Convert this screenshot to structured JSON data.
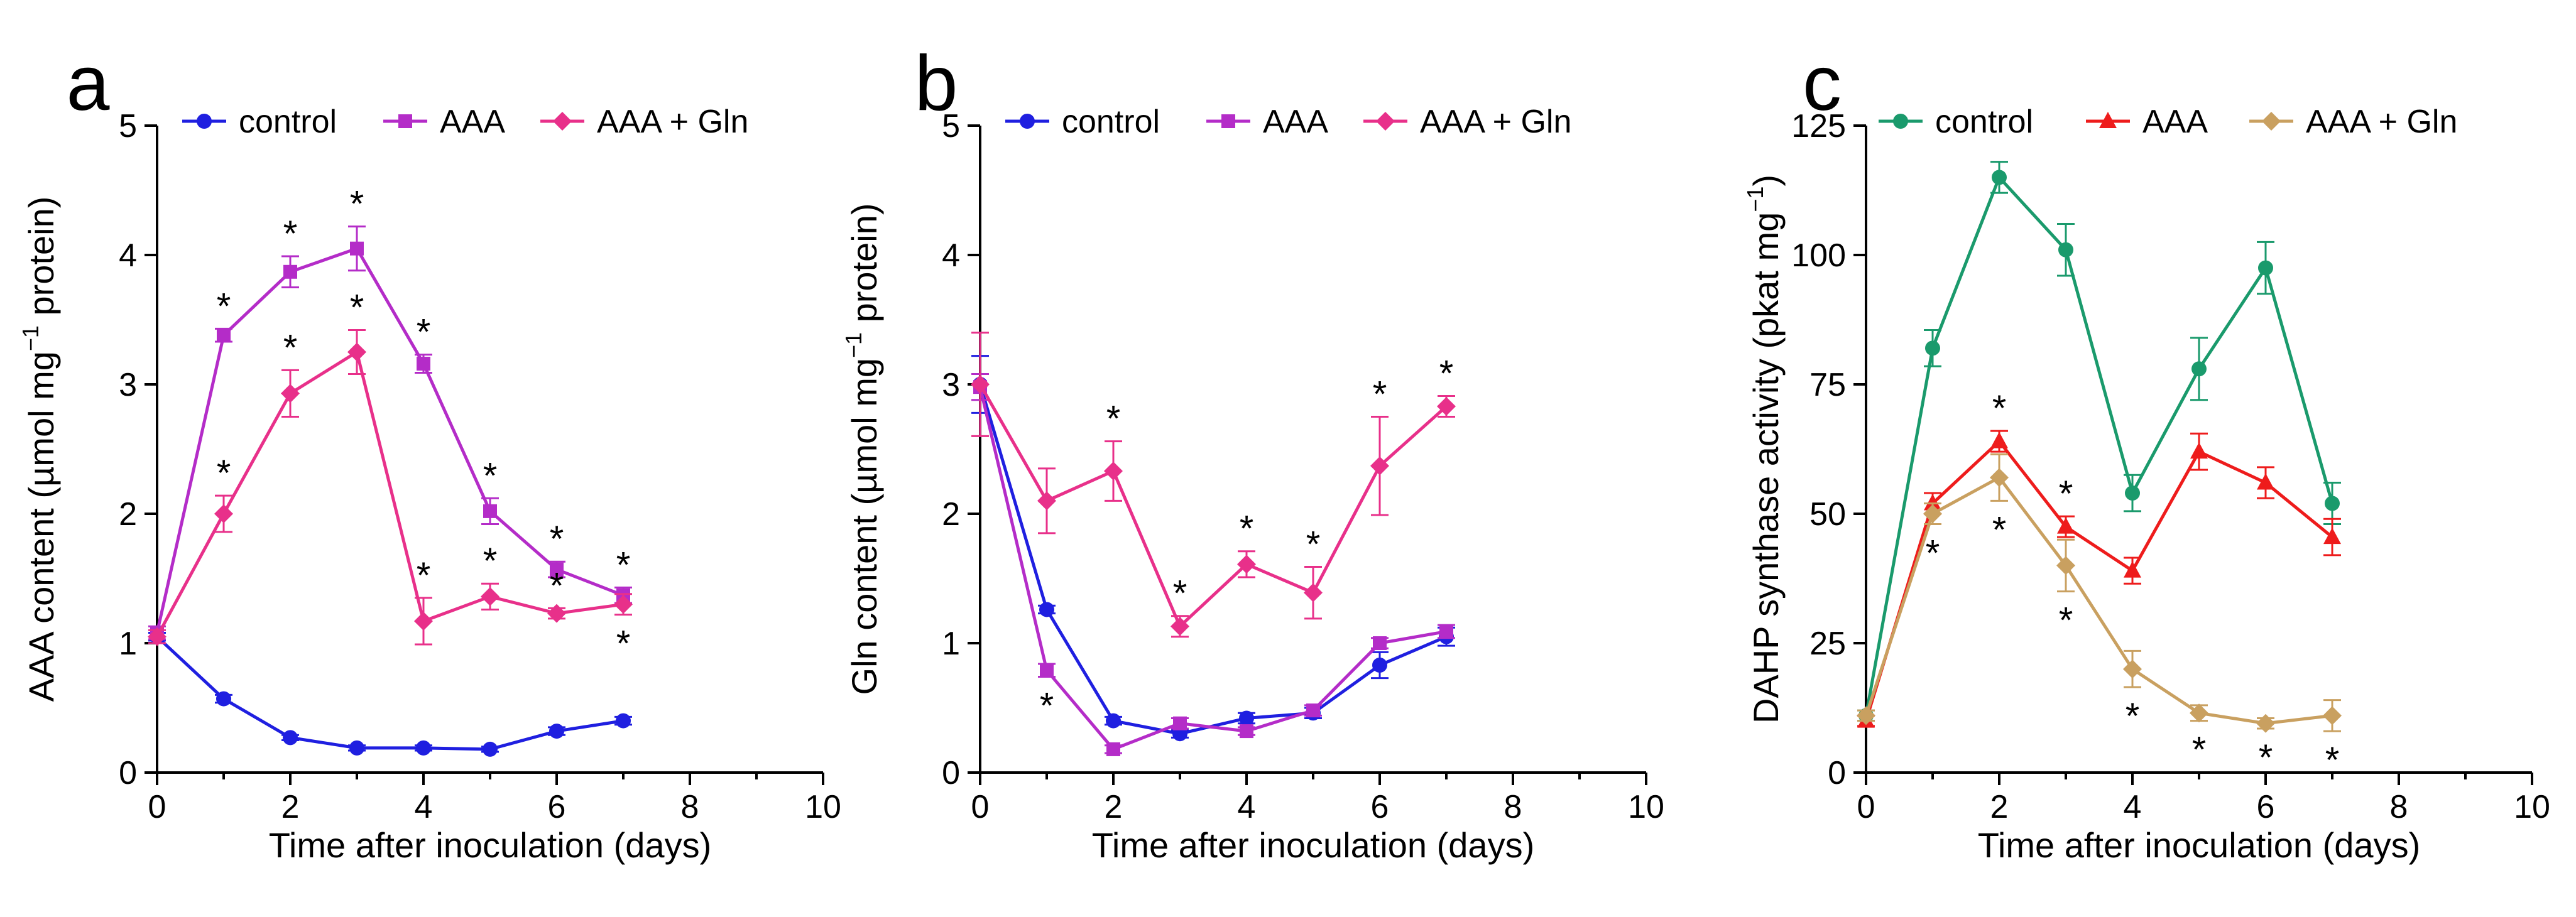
{
  "chart_data": [
    {
      "type": "line",
      "panel_label": "a",
      "xlabel": "Time after inoculation (days)",
      "ylabel_parts": [
        "AAA content (",
        "µmol mg",
        "−1",
        " protein)"
      ],
      "xlim": [
        0,
        10
      ],
      "ylim": [
        0,
        5
      ],
      "xticks": [
        0,
        2,
        4,
        6,
        8,
        10
      ],
      "yticks": [
        0,
        1,
        2,
        3,
        4,
        5
      ],
      "star_symbol": "*",
      "series": [
        {
          "name": "control",
          "color": "#1f1fe0",
          "marker": "circle",
          "x": [
            0,
            1,
            2,
            3,
            4,
            5,
            6,
            7
          ],
          "y": [
            1.05,
            0.57,
            0.27,
            0.19,
            0.19,
            0.18,
            0.32,
            0.4
          ],
          "err": [
            0.03,
            0.03,
            0.02,
            0.02,
            0.02,
            0.02,
            0.03,
            0.03
          ],
          "stars": []
        },
        {
          "name": "AAA",
          "color": "#b42cc8",
          "marker": "square",
          "x": [
            0,
            1,
            2,
            3,
            4,
            5,
            6,
            7
          ],
          "y": [
            1.08,
            3.38,
            3.87,
            4.05,
            3.16,
            2.02,
            1.57,
            1.37
          ],
          "err": [
            0.05,
            0.05,
            0.12,
            0.17,
            0.07,
            0.1,
            0.06,
            0.06
          ],
          "stars": [
            1,
            2,
            3,
            4,
            5,
            6,
            7
          ]
        },
        {
          "name": "AAA + Gln",
          "color": "#e8308a",
          "marker": "diamond",
          "x": [
            0,
            1,
            2,
            3,
            4,
            5,
            6,
            7
          ],
          "y": [
            1.05,
            2.0,
            2.93,
            3.25,
            1.17,
            1.36,
            1.23,
            1.3
          ],
          "err": [
            0.05,
            0.14,
            0.18,
            0.17,
            0.18,
            0.1,
            0.04,
            0.08
          ],
          "stars": [
            1,
            2,
            3,
            4,
            5,
            6,
            7
          ],
          "stars_below": [
            7
          ]
        }
      ]
    },
    {
      "type": "line",
      "panel_label": "b",
      "xlabel": "Time after inoculation (days)",
      "ylabel_parts": [
        "Gln content (",
        "µmol mg",
        "−1",
        " protein)"
      ],
      "xlim": [
        0,
        10
      ],
      "ylim": [
        0,
        5
      ],
      "xticks": [
        0,
        2,
        4,
        6,
        8,
        10
      ],
      "yticks": [
        0,
        1,
        2,
        3,
        4,
        5
      ],
      "star_symbol": "*",
      "series": [
        {
          "name": "control",
          "color": "#1f1fe0",
          "marker": "circle",
          "x": [
            0,
            1,
            2,
            3,
            4,
            5,
            6,
            7
          ],
          "y": [
            3.0,
            1.26,
            0.4,
            0.3,
            0.42,
            0.46,
            0.83,
            1.05
          ],
          "err": [
            0.22,
            0.03,
            0.03,
            0.03,
            0.04,
            0.04,
            0.1,
            0.07
          ],
          "stars": []
        },
        {
          "name": "AAA",
          "color": "#b42cc8",
          "marker": "square",
          "x": [
            0,
            1,
            2,
            3,
            4,
            5,
            6,
            7
          ],
          "y": [
            2.98,
            0.79,
            0.18,
            0.38,
            0.32,
            0.48,
            1.0,
            1.09
          ],
          "err": [
            0.1,
            0.05,
            0.03,
            0.04,
            0.03,
            0.04,
            0.04,
            0.05
          ],
          "stars": [
            1
          ],
          "stars_below": [
            1
          ]
        },
        {
          "name": "AAA + Gln",
          "color": "#e8308a",
          "marker": "diamond",
          "x": [
            0,
            1,
            2,
            3,
            4,
            5,
            6,
            7
          ],
          "y": [
            3.0,
            2.1,
            2.33,
            1.13,
            1.61,
            1.39,
            2.37,
            2.83
          ],
          "err": [
            0.4,
            0.25,
            0.23,
            0.08,
            0.1,
            0.2,
            0.38,
            0.08
          ],
          "stars": [
            2,
            3,
            4,
            5,
            6,
            7
          ]
        }
      ]
    },
    {
      "type": "line",
      "panel_label": "c",
      "xlabel": "Time after inoculation (days)",
      "ylabel_parts": [
        "DAHP synthase activity (pkat mg",
        "−1",
        ")"
      ],
      "xlim": [
        0,
        10
      ],
      "ylim": [
        0,
        125
      ],
      "xticks": [
        0,
        2,
        4,
        6,
        8,
        10
      ],
      "yticks": [
        0,
        25,
        50,
        75,
        100,
        125
      ],
      "star_symbol": "*",
      "series": [
        {
          "name": "control",
          "color": "#1a9a6c",
          "marker": "circle",
          "x": [
            0,
            1,
            2,
            3,
            4,
            5,
            6,
            7
          ],
          "y": [
            11,
            82,
            115,
            101,
            54,
            78,
            97.5,
            52
          ],
          "err": [
            1,
            3.5,
            3,
            5,
            3.5,
            6,
            5,
            4
          ],
          "stars": []
        },
        {
          "name": "AAA",
          "color": "#ee1c1c",
          "marker": "triangle",
          "x": [
            0,
            1,
            2,
            3,
            4,
            5,
            6,
            7
          ],
          "y": [
            10,
            52,
            64,
            47.5,
            39,
            62,
            56,
            45.5
          ],
          "err": [
            1,
            2,
            2,
            2,
            2.5,
            3.5,
            3,
            3.5
          ],
          "stars": [
            2,
            3
          ]
        },
        {
          "name": "AAA + Gln",
          "color": "#c9a060",
          "marker": "diamond",
          "x": [
            0,
            1,
            2,
            3,
            4,
            5,
            6,
            7
          ],
          "y": [
            11,
            50,
            57,
            40,
            20,
            11.5,
            9.5,
            11
          ],
          "err": [
            1,
            2,
            4.5,
            5,
            3.5,
            1.5,
            1,
            3
          ],
          "stars": [
            1,
            2,
            3,
            4,
            5,
            6,
            7
          ],
          "stars_below": [
            1,
            2,
            3,
            4,
            5,
            6,
            7
          ]
        }
      ]
    }
  ]
}
